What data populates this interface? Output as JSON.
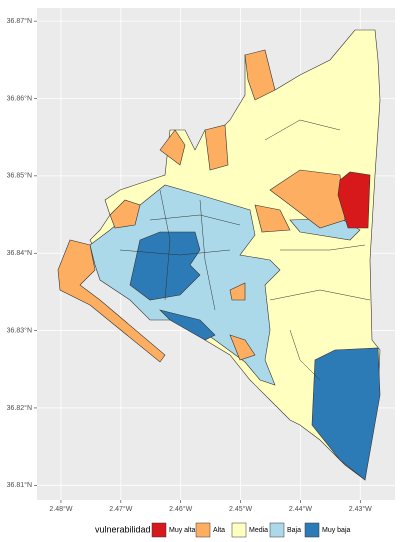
{
  "chart_data": {
    "type": "map",
    "xlim": [
      -2.484,
      -2.4242
    ],
    "ylim": [
      36.8081,
      36.8717
    ],
    "xticks": [
      {
        "value": -2.48,
        "label": "2.48°W"
      },
      {
        "value": -2.47,
        "label": "2.47°W"
      },
      {
        "value": -2.46,
        "label": "2.46°W"
      },
      {
        "value": -2.45,
        "label": "2.45°W"
      },
      {
        "value": -2.44,
        "label": "2.44°W"
      },
      {
        "value": -2.43,
        "label": "2.43°W"
      }
    ],
    "yticks": [
      {
        "value": 36.81,
        "label": "36.81°N"
      },
      {
        "value": 36.82,
        "label": "36.82°N"
      },
      {
        "value": 36.83,
        "label": "36.83°N"
      },
      {
        "value": 36.84,
        "label": "36.84°N"
      },
      {
        "value": 36.85,
        "label": "36.85°N"
      },
      {
        "value": 36.86,
        "label": "36.86°N"
      },
      {
        "value": 36.87,
        "label": "36.87°N"
      }
    ],
    "grid": true,
    "legend": {
      "title": "vulnerabilidad",
      "position": "bottom",
      "items": [
        {
          "name": "Muy alta",
          "color": "#d7191c"
        },
        {
          "name": "Alta",
          "color": "#fdae61"
        },
        {
          "name": "Media",
          "color": "#ffffbf"
        },
        {
          "name": "Baja",
          "color": "#abd9e9"
        },
        {
          "name": "Muy baja",
          "color": "#2c7bb6"
        }
      ]
    }
  }
}
